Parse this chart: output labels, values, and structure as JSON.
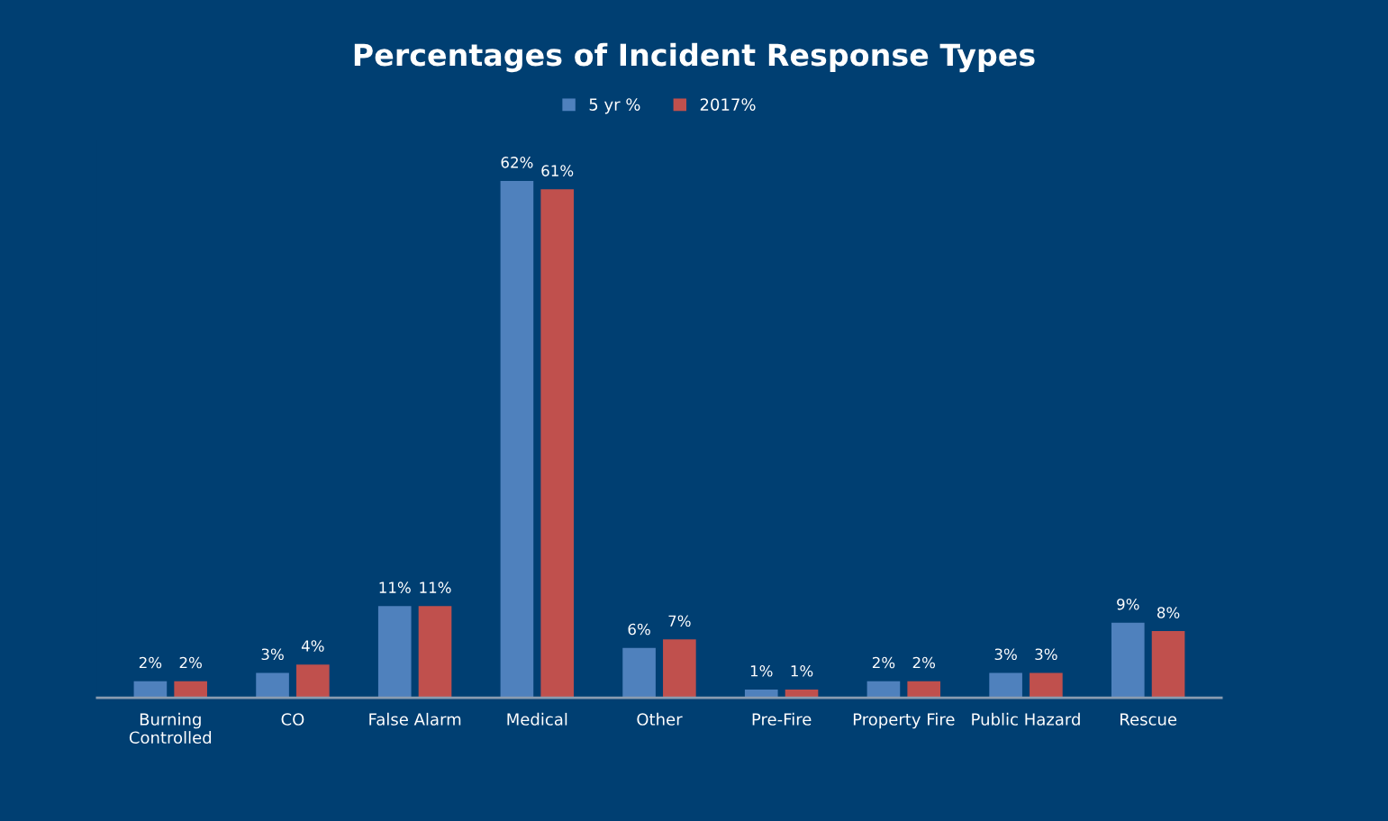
{
  "chart_data": {
    "type": "bar",
    "title": "Percentages of Incident Response Types",
    "categories": [
      "Burning\nControlled",
      "CO",
      "False Alarm",
      "Medical",
      "Other",
      "Pre-Fire",
      "Property Fire",
      "Public Hazard",
      "Rescue"
    ],
    "series": [
      {
        "name": "5 yr %",
        "color": "#4f81bd",
        "values": [
          2,
          3,
          11,
          62,
          6,
          1,
          2,
          3,
          9
        ],
        "value_labels": [
          "2%",
          "3%",
          "11%",
          "62%",
          "6%",
          "1%",
          "2%",
          "3%",
          "9%"
        ]
      },
      {
        "name": "2017%",
        "color": "#c0504d",
        "values": [
          2,
          4,
          11,
          61,
          7,
          1,
          2,
          3,
          8
        ],
        "value_labels": [
          "2%",
          "4%",
          "11%",
          "61%",
          "7%",
          "1%",
          "2%",
          "3%",
          "8%"
        ]
      }
    ],
    "legend": "top",
    "grid": false
  }
}
